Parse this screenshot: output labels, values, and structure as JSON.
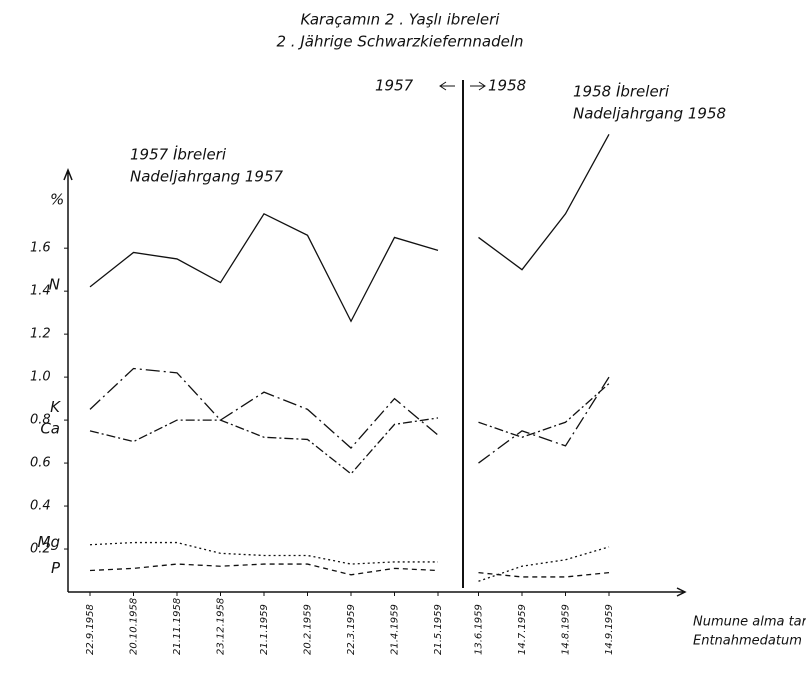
{
  "chart_data": [
    {
      "type": "line",
      "title": "Karaçamın 2 . Yaşlı ibreleri",
      "subtitle": "2 . Jährige Schwarzkiefernnadeln",
      "annotation": [
        "1957 İbreleri",
        "Nadeljahrgang 1957"
      ],
      "divider_labels": [
        "1957",
        "1958"
      ],
      "y_label": "%",
      "x_label": [
        "Numune alma tarihleri",
        "Entnahmedatum"
      ],
      "categories": [
        "22.9.1958",
        "20.10.1958",
        "21.11.1958",
        "23.12.1958",
        "21.1.1959",
        "20.2.1959",
        "22.3.1959",
        "21.4.1959",
        "21.5.1959"
      ],
      "ylim": [
        0,
        2.15
      ],
      "yticks": [
        0.2,
        0.4,
        0.6,
        0.8,
        {
          "value": 1,
          "label": "1.0"
        },
        1.2,
        1.4,
        1.6
      ],
      "series": [
        {
          "name": "N",
          "color": "#111",
          "dash": "none",
          "values": [
            1.42,
            1.58,
            1.55,
            1.44,
            1.76,
            1.66,
            1.26,
            1.65,
            1.59
          ]
        },
        {
          "name": "K",
          "color": "#111",
          "dash": "14 4 2 4",
          "values": [
            0.85,
            1.04,
            1.02,
            0.8,
            0.93,
            0.85,
            0.67,
            0.9,
            0.73
          ]
        },
        {
          "name": "Ca",
          "color": "#111",
          "dash": "9 3 2 3",
          "values": [
            0.75,
            0.7,
            0.8,
            0.8,
            0.72,
            0.71,
            0.55,
            0.78,
            0.81
          ]
        },
        {
          "name": "Mg",
          "color": "#111",
          "dash": "2 3",
          "values": [
            0.22,
            0.23,
            0.23,
            0.18,
            0.17,
            0.17,
            0.13,
            0.14,
            0.14
          ]
        },
        {
          "name": "P",
          "color": "#111",
          "dash": "5 4",
          "values": [
            0.1,
            0.11,
            0.13,
            0.12,
            0.13,
            0.13,
            0.08,
            0.11,
            0.1
          ]
        }
      ]
    },
    {
      "type": "line",
      "annotation": [
        "1958 İbreleri",
        "Nadeljahrgang 1958"
      ],
      "categories": [
        "13.6.1959",
        "14.7.1959",
        "14.8.1959",
        "14.9.1959"
      ],
      "series": [
        {
          "color": "#111",
          "dash": "none",
          "values": [
            1.65,
            1.5,
            1.76,
            2.13
          ]
        },
        {
          "color": "#111",
          "dash": "14 4 2 4",
          "values": [
            0.6,
            0.75,
            0.68,
            1.0
          ]
        },
        {
          "color": "#111",
          "dash": "9 3 2 3",
          "values": [
            0.79,
            0.72,
            0.79,
            0.97
          ]
        },
        {
          "color": "#111",
          "dash": "2 3",
          "values": [
            0.05,
            0.12,
            0.15,
            0.21
          ]
        },
        {
          "color": "#111",
          "dash": "5 4",
          "values": [
            0.09,
            0.07,
            0.07,
            0.09
          ]
        }
      ]
    }
  ]
}
